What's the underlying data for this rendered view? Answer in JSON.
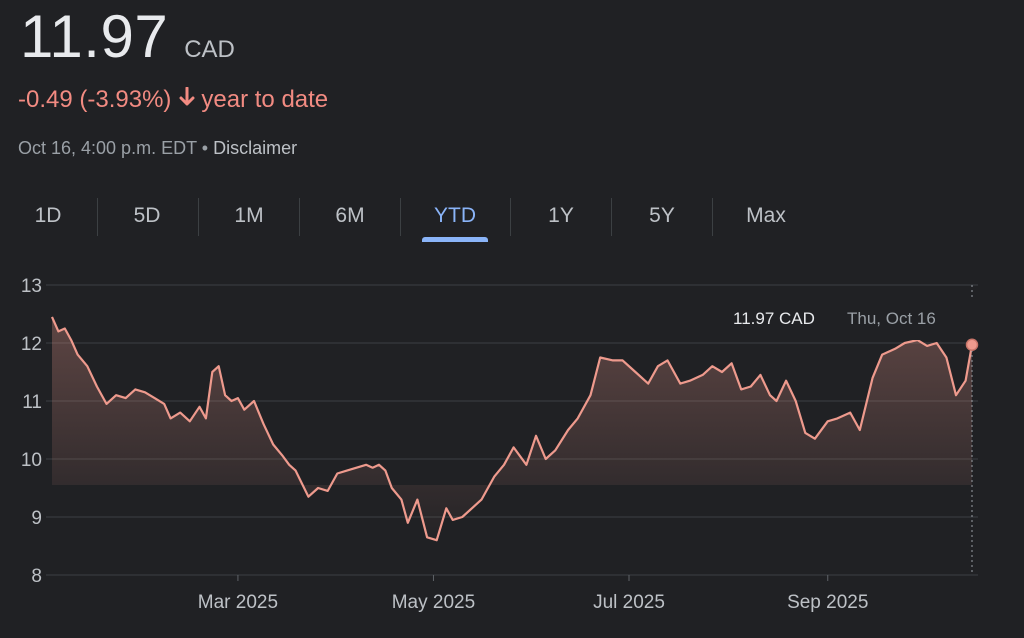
{
  "quote": {
    "price": "11.97",
    "currency": "CAD",
    "change": "-0.49 (-3.93%)",
    "change_arrow": "down-arrow-icon",
    "period": "year to date",
    "timestamp": "Oct 16, 4:00 p.m. EDT",
    "separator": "•",
    "disclaimer": "Disclaimer"
  },
  "tabs": [
    {
      "label": "1D",
      "active": false
    },
    {
      "label": "5D",
      "active": false
    },
    {
      "label": "1M",
      "active": false
    },
    {
      "label": "6M",
      "active": false
    },
    {
      "label": "YTD",
      "active": true
    },
    {
      "label": "1Y",
      "active": false
    },
    {
      "label": "5Y",
      "active": false
    },
    {
      "label": "Max",
      "active": false
    }
  ],
  "colors": {
    "line": "#ee9a8d",
    "negative": "#f28b82",
    "accent": "#8ab4f8",
    "background": "#202124"
  },
  "tooltip": {
    "value": "11.97 CAD",
    "date": "Thu, Oct 16"
  },
  "chart_data": {
    "type": "area",
    "x_tick_labels": [
      "Mar 2025",
      "May 2025",
      "Jul 2025",
      "Sep 2025"
    ],
    "y_tick_labels": [
      "8",
      "9",
      "10",
      "11",
      "12",
      "13"
    ],
    "ylim": [
      8,
      13
    ],
    "xlim": [
      "2025-01-02",
      "2025-10-16"
    ],
    "grid": true,
    "series": [
      {
        "x": [
          "2025-01-02",
          "2025-01-04",
          "2025-01-06",
          "2025-01-08",
          "2025-01-10",
          "2025-01-13",
          "2025-01-16",
          "2025-01-19",
          "2025-01-22",
          "2025-01-25",
          "2025-01-28",
          "2025-01-31",
          "2025-02-03",
          "2025-02-06",
          "2025-02-08",
          "2025-02-11",
          "2025-02-14",
          "2025-02-17",
          "2025-02-19",
          "2025-02-21",
          "2025-02-23",
          "2025-02-25",
          "2025-02-27",
          "2025-03-01",
          "2025-03-03",
          "2025-03-06",
          "2025-03-09",
          "2025-03-12",
          "2025-03-15",
          "2025-03-17",
          "2025-03-19",
          "2025-03-23",
          "2025-03-26",
          "2025-03-29",
          "2025-04-01",
          "2025-04-04",
          "2025-04-07",
          "2025-04-10",
          "2025-04-12",
          "2025-04-14",
          "2025-04-16",
          "2025-04-18",
          "2025-04-21",
          "2025-04-23",
          "2025-04-26",
          "2025-04-29",
          "2025-05-02",
          "2025-05-05",
          "2025-05-07",
          "2025-05-10",
          "2025-05-13",
          "2025-05-16",
          "2025-05-20",
          "2025-05-23",
          "2025-05-26",
          "2025-05-30",
          "2025-06-02",
          "2025-06-05",
          "2025-06-08",
          "2025-06-12",
          "2025-06-15",
          "2025-06-19",
          "2025-06-22",
          "2025-06-26",
          "2025-06-29",
          "2025-07-03",
          "2025-07-07",
          "2025-07-10",
          "2025-07-13",
          "2025-07-17",
          "2025-07-20",
          "2025-07-24",
          "2025-07-27",
          "2025-07-30",
          "2025-08-02",
          "2025-08-05",
          "2025-08-08",
          "2025-08-11",
          "2025-08-14",
          "2025-08-16",
          "2025-08-19",
          "2025-08-22",
          "2025-08-25",
          "2025-08-28",
          "2025-09-01",
          "2025-09-04",
          "2025-09-08",
          "2025-09-11",
          "2025-09-15",
          "2025-09-18",
          "2025-09-22",
          "2025-09-25",
          "2025-09-29",
          "2025-10-02",
          "2025-10-05",
          "2025-10-08",
          "2025-10-11",
          "2025-10-14",
          "2025-10-16"
        ],
        "values": [
          12.45,
          12.2,
          12.25,
          12.05,
          11.8,
          11.6,
          11.25,
          10.95,
          11.1,
          11.05,
          11.2,
          11.15,
          11.05,
          10.95,
          10.7,
          10.8,
          10.65,
          10.9,
          10.7,
          11.5,
          11.6,
          11.1,
          11.0,
          11.05,
          10.85,
          11.0,
          10.6,
          10.25,
          10.05,
          9.9,
          9.8,
          9.35,
          9.5,
          9.45,
          9.75,
          9.8,
          9.85,
          9.9,
          9.85,
          9.9,
          9.8,
          9.5,
          9.3,
          8.9,
          9.3,
          8.65,
          8.6,
          9.15,
          8.95,
          9.0,
          9.15,
          9.3,
          9.7,
          9.9,
          10.2,
          9.9,
          10.4,
          10.0,
          10.15,
          10.5,
          10.7,
          11.1,
          11.75,
          11.7,
          11.7,
          11.5,
          11.3,
          11.6,
          11.7,
          11.3,
          11.35,
          11.45,
          11.6,
          11.5,
          11.65,
          11.2,
          11.25,
          11.45,
          11.1,
          11.0,
          11.35,
          11.0,
          10.45,
          10.35,
          10.65,
          10.7,
          10.8,
          10.5,
          11.4,
          11.8,
          11.9,
          12.0,
          12.05,
          11.95,
          12.0,
          11.75,
          11.1,
          11.35,
          11.97
        ]
      }
    ]
  }
}
